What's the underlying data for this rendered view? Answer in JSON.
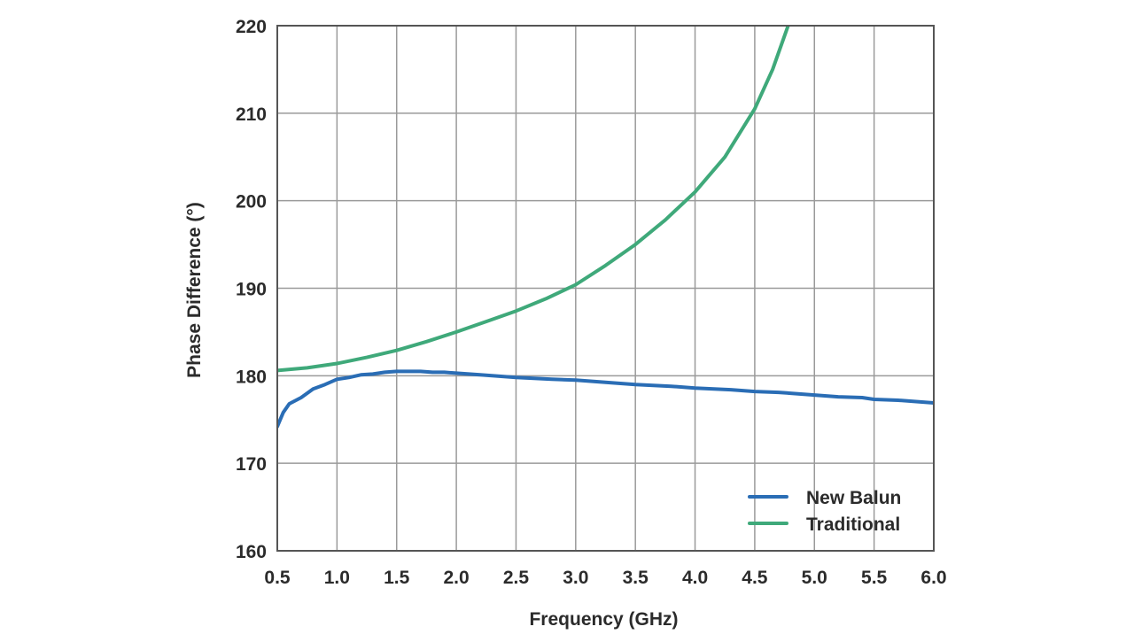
{
  "chart_data": {
    "type": "line",
    "title": "",
    "xlabel": "Frequency (GHz)",
    "ylabel": "Phase Difference (°)",
    "xlim": [
      0.5,
      6.0
    ],
    "ylim": [
      160,
      220
    ],
    "xticks": [
      "0.5",
      "1.0",
      "1.5",
      "2.0",
      "2.5",
      "3.0",
      "3.5",
      "4.0",
      "4.5",
      "5.0",
      "5.5",
      "6.0"
    ],
    "yticks": [
      "160",
      "170",
      "180",
      "190",
      "200",
      "210",
      "220"
    ],
    "grid": true,
    "legend_position": "bottom-right",
    "colors": {
      "new_balun": "#2a6db5",
      "traditional": "#3fa97a",
      "grid": "#9a9a9a",
      "axis": "#555555"
    },
    "series": [
      {
        "name": "New Balun",
        "x": [
          0.5,
          0.55,
          0.6,
          0.7,
          0.8,
          0.9,
          1.0,
          1.1,
          1.2,
          1.3,
          1.4,
          1.5,
          1.6,
          1.7,
          1.8,
          1.9,
          2.0,
          2.2,
          2.5,
          2.8,
          3.0,
          3.3,
          3.5,
          3.8,
          4.0,
          4.3,
          4.5,
          4.7,
          5.0,
          5.2,
          5.4,
          5.5,
          5.7,
          6.0
        ],
        "y": [
          174.2,
          175.8,
          176.8,
          177.5,
          178.5,
          179.0,
          179.6,
          179.8,
          180.1,
          180.2,
          180.4,
          180.5,
          180.5,
          180.5,
          180.4,
          180.4,
          180.3,
          180.1,
          179.8,
          179.6,
          179.5,
          179.2,
          179.0,
          178.8,
          178.6,
          178.4,
          178.2,
          178.1,
          177.8,
          177.6,
          177.5,
          177.3,
          177.2,
          176.9
        ]
      },
      {
        "name": "Traditional",
        "x": [
          0.5,
          0.75,
          1.0,
          1.25,
          1.5,
          1.75,
          2.0,
          2.25,
          2.5,
          2.75,
          3.0,
          3.25,
          3.5,
          3.75,
          4.0,
          4.25,
          4.5,
          4.65,
          4.78
        ],
        "y": [
          180.6,
          180.9,
          181.4,
          182.1,
          182.9,
          183.9,
          185.0,
          186.2,
          187.4,
          188.8,
          190.4,
          192.6,
          195.0,
          197.8,
          201.0,
          205.0,
          210.5,
          215.0,
          220.0
        ]
      }
    ]
  }
}
